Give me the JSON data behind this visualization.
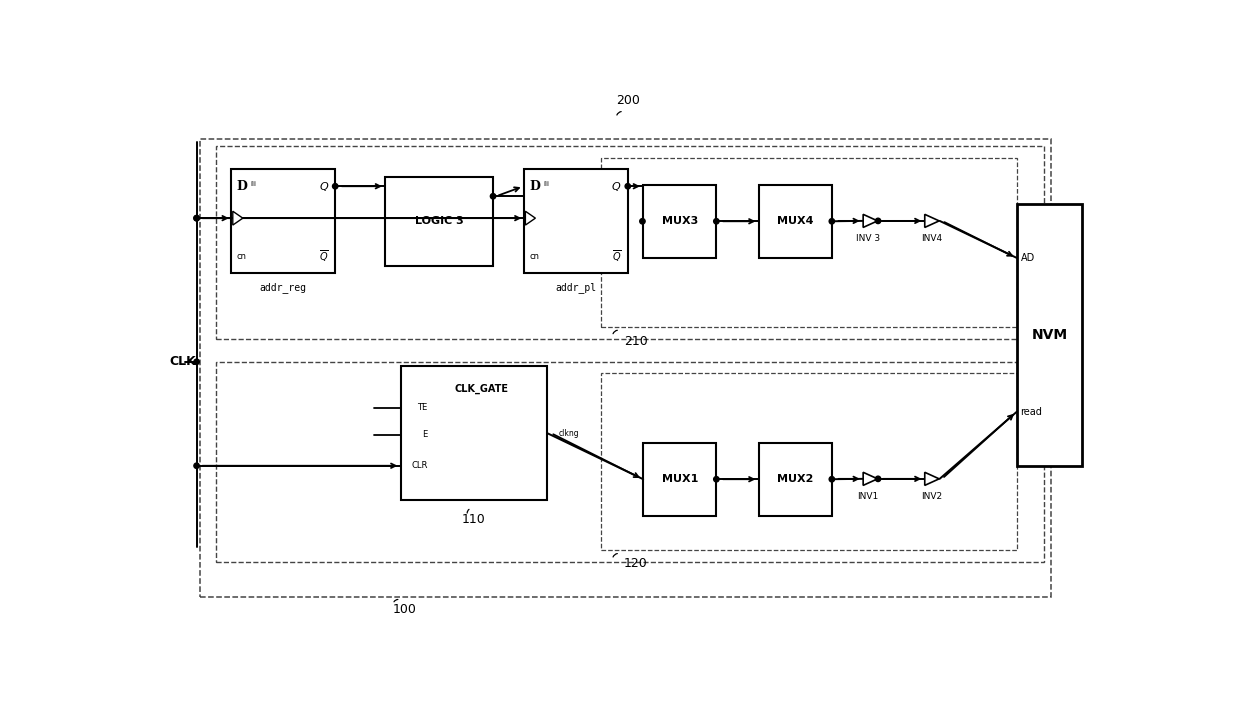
{
  "bg_color": "#ffffff",
  "lc": "#000000",
  "fig_width": 12.4,
  "fig_height": 7.05,
  "label_200": "200",
  "label_100": "100",
  "label_110": "110",
  "label_120": "120",
  "label_210": "210",
  "clk_label": "CLK",
  "nvm_label": "NVM",
  "ad_label": "AD",
  "read_label": "read",
  "addr_reg_label": "addr_reg",
  "addr_pl_label": "addr_pl",
  "logic3_label": "LOGIC 3",
  "mux3_label": "MUX3",
  "mux4_label": "MUX4",
  "inv3_label": "INV 3",
  "inv4_label": "INV4",
  "mux1_label": "MUX1",
  "mux2_label": "MUX2",
  "inv1_label": "INV1",
  "inv2_label": "INV2",
  "clk_gate_label": "CLK_GATE",
  "clkng_label": "clkng",
  "te_label": "TE",
  "e_label": "E",
  "clr_label": "CLR"
}
